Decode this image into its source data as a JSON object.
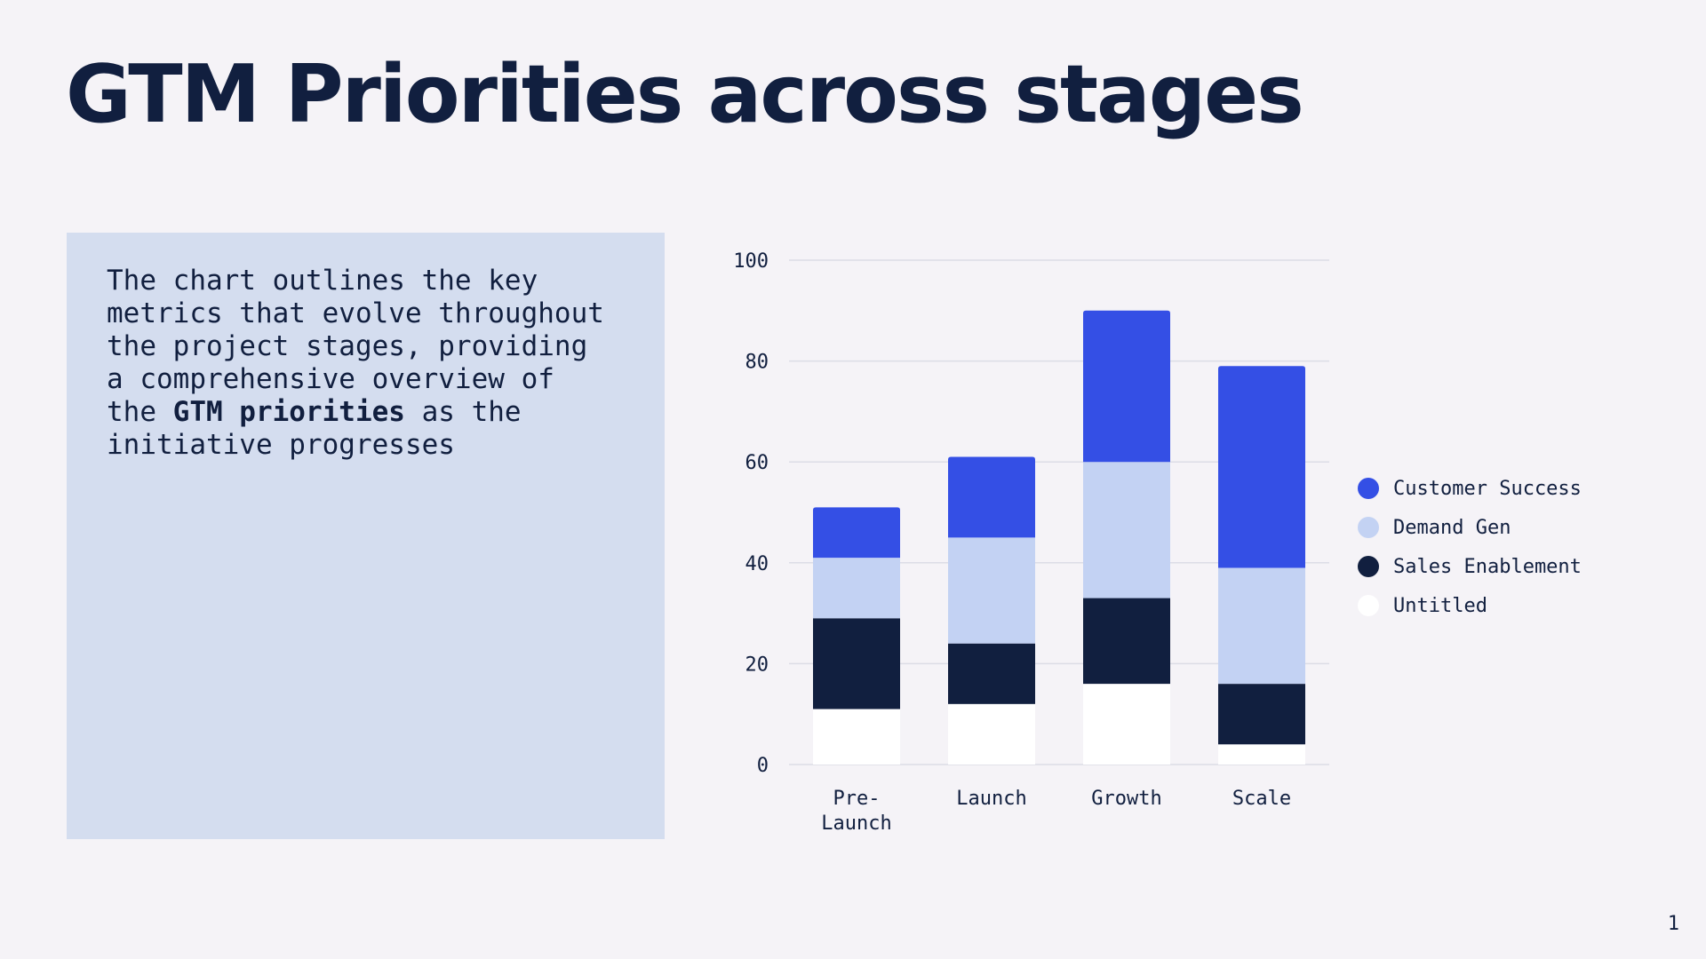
{
  "slide": {
    "title": "GTM Priorities across stages",
    "description": {
      "before": "The chart outlines the key metrics that evolve throughout the project stages, providing a comprehensive overview of the ",
      "bold": "GTM priorities",
      "after": " as the initiative progresses"
    },
    "page_number": "1"
  },
  "colors": {
    "background": "#f5f3f7",
    "panel": "#d4ddef",
    "text": "#111f3f",
    "gridline": "#dcdde6"
  },
  "chart_data": {
    "type": "bar",
    "stacked": true,
    "categories": [
      "Pre-\nLaunch",
      "Launch",
      "Growth",
      "Scale"
    ],
    "series": [
      {
        "name": "Untitled",
        "color": "#ffffff",
        "values": [
          11,
          12,
          16,
          4
        ]
      },
      {
        "name": "Sales Enablement",
        "color": "#111f3f",
        "values": [
          18,
          12,
          17,
          12
        ]
      },
      {
        "name": "Demand Gen",
        "color": "#c3d2f3",
        "values": [
          12,
          21,
          27,
          23
        ]
      },
      {
        "name": "Customer Success",
        "color": "#344fe5",
        "values": [
          10,
          16,
          30,
          40
        ]
      }
    ],
    "legend_order": [
      "Customer Success",
      "Demand Gen",
      "Sales Enablement",
      "Untitled"
    ],
    "ylim": [
      0,
      100
    ],
    "yticks": [
      "0",
      "20",
      "40",
      "60",
      "80",
      "100"
    ],
    "grid": true,
    "legend_position": "right"
  }
}
